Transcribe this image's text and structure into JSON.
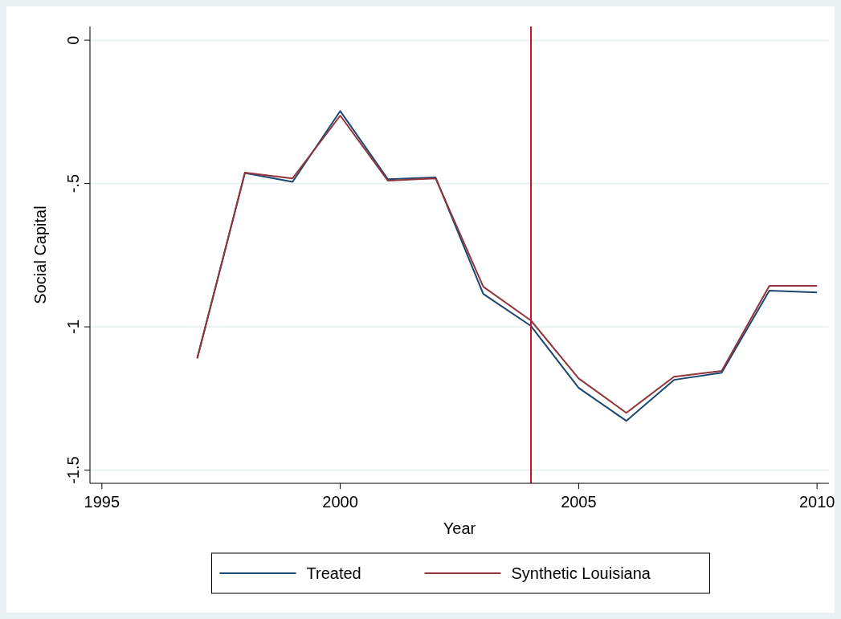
{
  "chart_data": {
    "type": "line",
    "xlabel": "Year",
    "ylabel": "Social Capital",
    "x": [
      1997,
      1998,
      1999,
      2000,
      2001,
      2002,
      2003,
      2004,
      2005,
      2006,
      2007,
      2008,
      2009,
      2010
    ],
    "series": [
      {
        "name": "Treated",
        "color": "#1a476f",
        "values": [
          -1.11,
          -0.463,
          -0.494,
          -0.247,
          -0.485,
          -0.479,
          -0.885,
          -0.997,
          -1.213,
          -1.328,
          -1.185,
          -1.16,
          -0.874,
          -0.88
        ]
      },
      {
        "name": "Synthetic Louisiana",
        "color": "#90353b",
        "values": [
          -1.11,
          -0.462,
          -0.482,
          -0.263,
          -0.49,
          -0.482,
          -0.86,
          -0.978,
          -1.18,
          -1.3,
          -1.174,
          -1.154,
          -0.857,
          -0.857
        ]
      }
    ],
    "xlim": [
      1994.75,
      2010.25
    ],
    "xticks": [
      1995,
      2000,
      2005,
      2010
    ],
    "ylim": [
      -1.546,
      0.048
    ],
    "yticks": [
      {
        "value": 0,
        "label": "0"
      },
      {
        "value": -0.5,
        "label": "-.5"
      },
      {
        "value": -1,
        "label": "-1"
      },
      {
        "value": -1.5,
        "label": "-1.5"
      }
    ],
    "ref_lines": [
      {
        "axis": "x",
        "value": 2004,
        "color": "#c8102e"
      }
    ],
    "grid": "y",
    "legend": "bottom",
    "line_style": "solid",
    "marker": "none"
  }
}
